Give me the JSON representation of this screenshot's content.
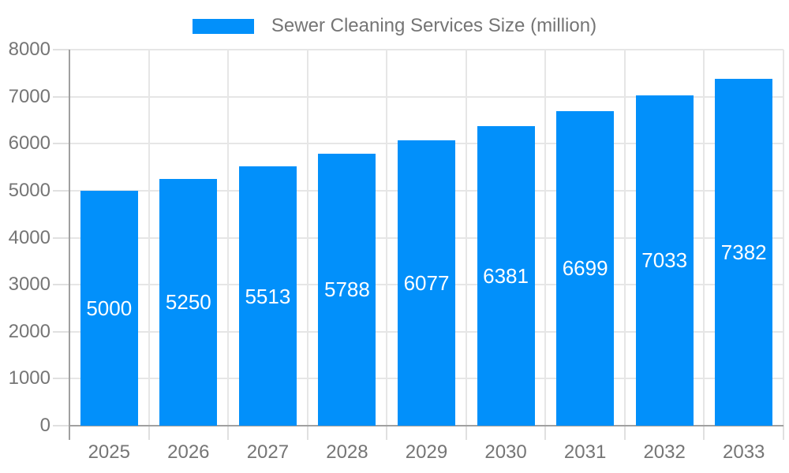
{
  "chart_data": {
    "type": "bar",
    "title": "Sewer Cleaning Services Size (million)",
    "legend": {
      "label": "Sewer Cleaning Services Size (million)",
      "position": "top"
    },
    "categories": [
      "2025",
      "2026",
      "2027",
      "2028",
      "2029",
      "2030",
      "2031",
      "2032",
      "2033"
    ],
    "series": [
      {
        "name": "Sewer Cleaning Services Size (million)",
        "values": [
          5000,
          5250,
          5513,
          5788,
          6077,
          6381,
          6699,
          7033,
          7382
        ]
      }
    ],
    "bar_labels": [
      "5000",
      "5250",
      "5513",
      "5788",
      "6077",
      "6381",
      "6699",
      "7033",
      "7382"
    ],
    "xlabel": "",
    "ylabel": "",
    "ylim": [
      0,
      8000
    ],
    "yticks": [
      0,
      1000,
      2000,
      3000,
      4000,
      5000,
      6000,
      7000,
      8000
    ],
    "ytick_labels": [
      "0",
      "1000",
      "2000",
      "3000",
      "4000",
      "5000",
      "6000",
      "7000",
      "8000"
    ],
    "grid": true,
    "legend_position": "top",
    "colors": {
      "bar": "#0290fa",
      "bar_label": "#ffffff",
      "axis_text": "#757575",
      "legend_text": "#757575",
      "gridline": "#e6e6e6",
      "tick": "#e0e0e0",
      "axis_line": "#a0a0a0",
      "background": "#ffffff"
    }
  }
}
